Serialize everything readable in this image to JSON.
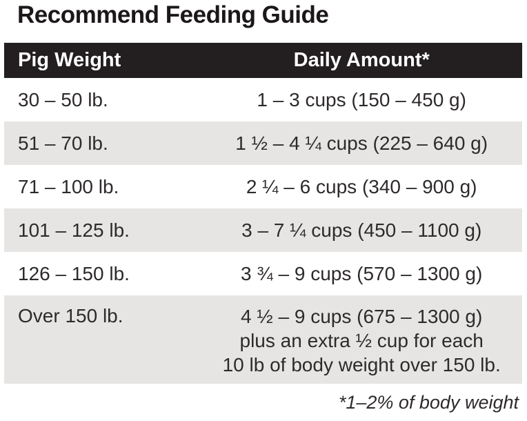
{
  "title": "Recommend Feeding Guide",
  "table": {
    "headers": [
      "Pig Weight",
      "Daily Amount*"
    ],
    "rows": [
      {
        "weight": "30 – 50 lb.",
        "amount": "1 – 3 cups (150 – 450 g)"
      },
      {
        "weight": "51 – 70 lb.",
        "amount": "1 ½ – 4 ¼ cups (225 – 640 g)"
      },
      {
        "weight": "71 – 100 lb.",
        "amount": "2 ¼ – 6 cups (340 – 900 g)"
      },
      {
        "weight": "101 – 125 lb.",
        "amount": "3 – 7 ¼ cups (450 – 1100 g)"
      },
      {
        "weight": "126 – 150 lb.",
        "amount": "3 ¾ – 9 cups (570 – 1300 g)"
      },
      {
        "weight": "Over 150 lb.",
        "amount": "4 ½ – 9 cups (675 – 1300 g)\nplus an extra ½ cup for each\n10 lb of body weight over 150 lb."
      }
    ],
    "footnote": "*1–2% of body weight"
  },
  "colors": {
    "header_bg": "#231f20",
    "header_text": "#ffffff",
    "row_alt_bg": "#e6e5e4",
    "body_text": "#2e2a2b"
  }
}
